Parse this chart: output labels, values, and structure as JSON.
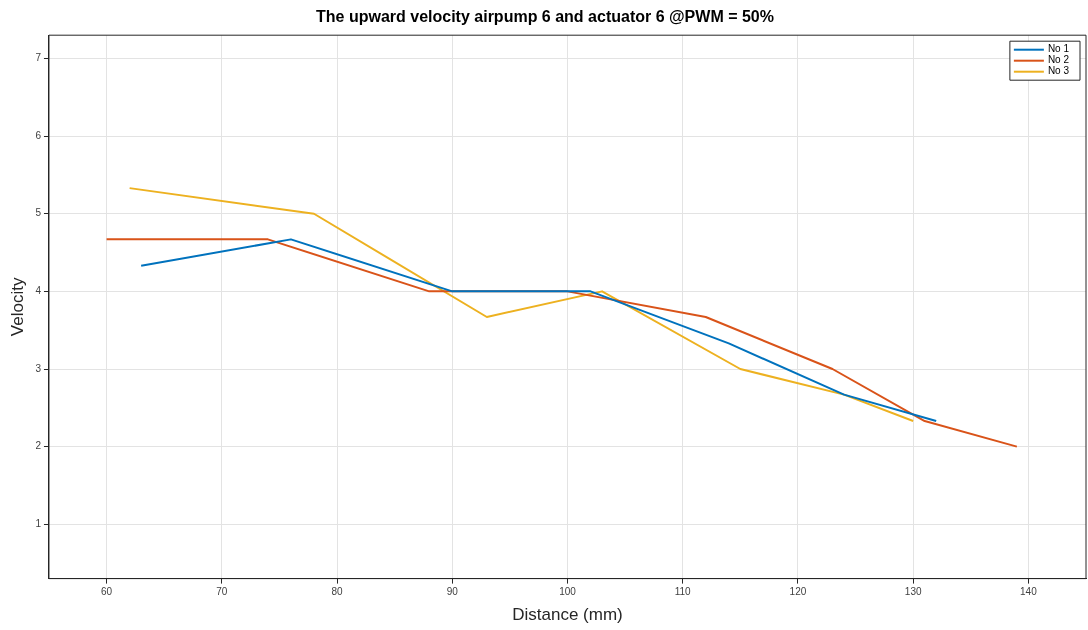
{
  "chart_data": {
    "type": "line",
    "title": "The upward velocity airpump 6 and actuator 6 @PWM = 50%",
    "xlabel": "Distance (mm)",
    "ylabel": "Velocity",
    "xlim": [
      55,
      145
    ],
    "xticks": [
      60,
      70,
      80,
      90,
      100,
      110,
      120,
      130,
      140
    ],
    "ylim": [
      0.3,
      7.3
    ],
    "yticks": [
      1,
      2,
      3,
      4,
      5,
      6,
      7
    ],
    "grid": true,
    "legend": "top right",
    "marker": "none",
    "line_style": "solid",
    "series": [
      {
        "name": "No 1",
        "color": "#0072bd",
        "x": [
          63,
          76,
          90,
          102,
          114,
          124,
          132
        ],
        "values": [
          4.33,
          4.67,
          4,
          4,
          3.33,
          2.67,
          2.33
        ]
      },
      {
        "name": "No 2",
        "color": "#d95319",
        "x": [
          60,
          74,
          88,
          100,
          112,
          123,
          131,
          139
        ],
        "values": [
          4.67,
          4.67,
          4,
          4,
          3.67,
          3,
          2.33,
          2
        ]
      },
      {
        "name": "No 3",
        "color": "#edb120",
        "x": [
          62,
          78,
          93,
          103,
          115,
          124,
          130
        ],
        "values": [
          5.33,
          5,
          3.67,
          4,
          3,
          2.67,
          2.33
        ]
      }
    ]
  }
}
